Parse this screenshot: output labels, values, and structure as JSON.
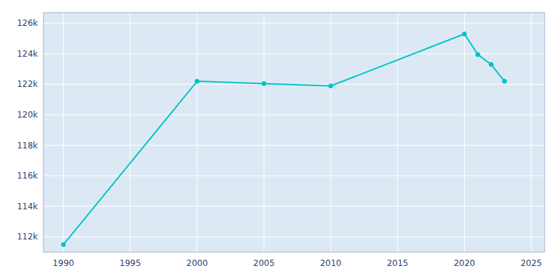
{
  "chart_data": {
    "type": "line",
    "x": [
      1990,
      2000,
      2005,
      2010,
      2020,
      2021,
      2022,
      2023
    ],
    "values": [
      111484,
      122198,
      122040,
      121890,
      125300,
      123950,
      123300,
      122200
    ],
    "color": "#00C4C4",
    "marker": "circle",
    "grid": true,
    "xlim": [
      1988.5,
      2026
    ],
    "ylim": [
      111000,
      126700
    ],
    "xticks": [
      1990,
      1995,
      2000,
      2005,
      2010,
      2015,
      2020,
      2025
    ],
    "yticks": [
      {
        "value": 112000,
        "label": "112k"
      },
      {
        "value": 114000,
        "label": "114k"
      },
      {
        "value": 116000,
        "label": "116k"
      },
      {
        "value": 118000,
        "label": "118k"
      },
      {
        "value": 120000,
        "label": "120k"
      },
      {
        "value": 122000,
        "label": "122k"
      },
      {
        "value": 124000,
        "label": "124k"
      },
      {
        "value": 126000,
        "label": "126k"
      }
    ]
  }
}
